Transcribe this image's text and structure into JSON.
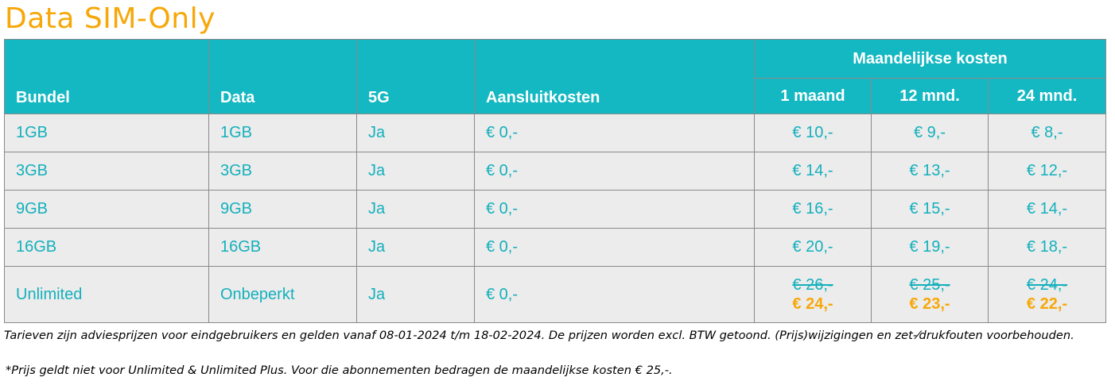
{
  "title": "Data SIM-Only",
  "headers": {
    "bundel": "Bundel",
    "data": "Data",
    "fiveg": "5G",
    "aansluitkosten": "Aansluitkosten",
    "maandelijkse_kosten": "Maandelijkse kosten",
    "periods": [
      "1 maand",
      "12 mnd.",
      "24 mnd."
    ]
  },
  "rows": [
    {
      "bundel": "1GB",
      "data": "1GB",
      "fiveg": "Ja",
      "aansluitkosten": "€ 0,-",
      "m1": "€ 10,-",
      "m12": "€ 9,-",
      "m24": "€ 8,-"
    },
    {
      "bundel": "3GB",
      "data": "3GB",
      "fiveg": "Ja",
      "aansluitkosten": "€ 0,-",
      "m1": "€ 14,-",
      "m12": "€ 13,-",
      "m24": "€ 12,-"
    },
    {
      "bundel": "9GB",
      "data": "9GB",
      "fiveg": "Ja",
      "aansluitkosten": "€ 0,-",
      "m1": "€ 16,-",
      "m12": "€ 15,-",
      "m24": "€ 14,-"
    },
    {
      "bundel": "16GB",
      "data": "16GB",
      "fiveg": "Ja",
      "aansluitkosten": "€ 0,-",
      "m1": "€ 20,-",
      "m12": "€ 19,-",
      "m24": "€ 18,-"
    }
  ],
  "unlimited": {
    "bundel": "Unlimited",
    "data": "Onbeperkt",
    "fiveg": "Ja",
    "aansluitkosten": "€ 0,-",
    "m1_old": "€ 26,-",
    "m1_new": "€ 24,-",
    "m12_old": "€ 25,-",
    "m12_new": "€ 23,-",
    "m24_old": "€ 24,-",
    "m24_new": "€ 22,-"
  },
  "notes": {
    "line1": "Tarieven zijn adviesprijzen voor eindgebruikers en gelden vanaf 08-01-2024 t/m 18-02-2024. De prijzen worden excl. BTW getoond. (Prijs)wijzigingen en zet-⁄drukfouten voorbehouden.",
    "line2": "*Prijs geldt niet voor Unlimited & Unlimited Plus. Voor die abonnementen bedragen de maandelijkse kosten € 25,-."
  },
  "colors": {
    "accent_orange": "#f7a707",
    "header_teal": "#14b8c2",
    "text_teal": "#14b0bc",
    "row_grey": "#ececec"
  }
}
